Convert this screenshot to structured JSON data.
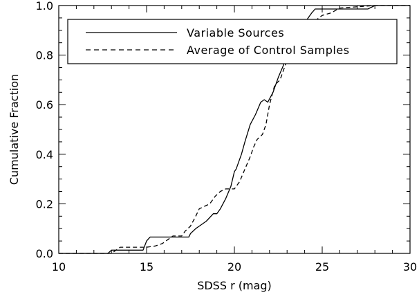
{
  "chart_data": {
    "type": "line",
    "xlabel": "SDSS r (mag)",
    "ylabel": "Cumulative Fraction",
    "xlim": [
      10,
      30
    ],
    "ylim": [
      0,
      1.0
    ],
    "xticks": [
      10,
      15,
      20,
      25,
      30
    ],
    "xtick_labels": [
      "10",
      "15",
      "20",
      "25",
      "30"
    ],
    "yticks": [
      0,
      0.2,
      0.4,
      0.6,
      0.8,
      1.0
    ],
    "ytick_labels": [
      "0.0",
      "0.2",
      "0.4",
      "0.6",
      "0.8",
      "1.0"
    ],
    "grid": false,
    "legend_position": "top",
    "series": [
      {
        "name": "Variable Sources",
        "style": "solid",
        "x": [
          10.0,
          12.8,
          13.0,
          14.8,
          15.0,
          15.2,
          17.0,
          17.4,
          17.5,
          17.8,
          18.0,
          18.4,
          18.8,
          19.0,
          19.2,
          19.5,
          19.8,
          20.0,
          20.1,
          20.4,
          20.6,
          20.9,
          21.2,
          21.5,
          21.7,
          21.9,
          22.2,
          22.5,
          22.8,
          23.0,
          23.3,
          23.5,
          23.7,
          24.0,
          24.2,
          24.4,
          24.6,
          24.8,
          25.0,
          27.6,
          28.0,
          30.0
        ],
        "y": [
          0.0,
          0.0,
          0.013,
          0.013,
          0.05,
          0.066,
          0.066,
          0.066,
          0.08,
          0.1,
          0.11,
          0.13,
          0.16,
          0.16,
          0.18,
          0.22,
          0.27,
          0.33,
          0.34,
          0.4,
          0.45,
          0.52,
          0.56,
          0.61,
          0.62,
          0.61,
          0.65,
          0.71,
          0.76,
          0.83,
          0.86,
          0.89,
          0.91,
          0.93,
          0.95,
          0.97,
          0.986,
          0.986,
          0.986,
          0.986,
          1.0,
          1.0
        ]
      },
      {
        "name": "Average of Control Samples",
        "style": "dashed",
        "x": [
          10.0,
          13.0,
          13.5,
          15.0,
          15.5,
          15.9,
          16.2,
          16.5,
          17.0,
          17.2,
          17.5,
          17.8,
          18.0,
          18.3,
          18.6,
          18.9,
          19.2,
          19.5,
          19.8,
          20.0,
          20.3,
          20.6,
          20.9,
          21.1,
          21.3,
          21.6,
          21.8,
          22.0,
          22.3,
          22.6,
          22.9,
          23.1,
          23.3,
          23.6,
          23.9,
          24.2,
          24.5,
          24.8,
          25.0,
          25.5,
          26.0,
          28.0,
          30.0
        ],
        "y": [
          0.0,
          0.0,
          0.025,
          0.025,
          0.03,
          0.04,
          0.055,
          0.07,
          0.07,
          0.09,
          0.11,
          0.15,
          0.18,
          0.19,
          0.2,
          0.23,
          0.25,
          0.26,
          0.26,
          0.26,
          0.29,
          0.34,
          0.39,
          0.43,
          0.46,
          0.48,
          0.52,
          0.6,
          0.68,
          0.7,
          0.76,
          0.82,
          0.84,
          0.85,
          0.88,
          0.91,
          0.93,
          0.95,
          0.96,
          0.97,
          0.99,
          1.0,
          1.0
        ]
      }
    ]
  }
}
